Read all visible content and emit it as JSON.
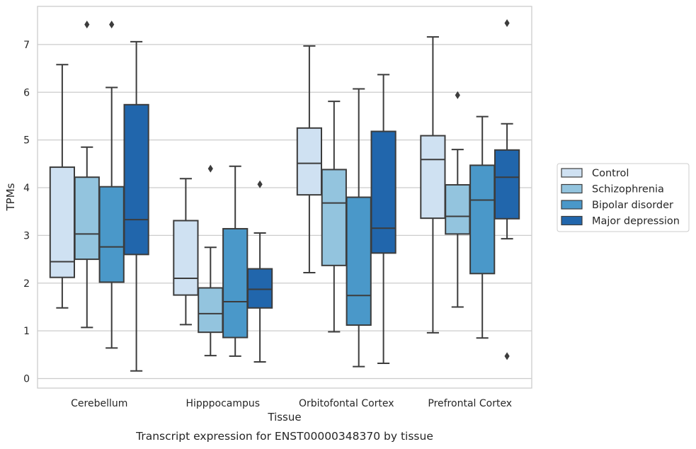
{
  "caption": "Transcript expression for ENST00000348370 by tissue",
  "chart_data": {
    "type": "box",
    "xlabel": "Tissue",
    "ylabel": "TPMs",
    "ylim": [
      -0.2,
      7.8
    ],
    "yticks": [
      0,
      1,
      2,
      3,
      4,
      5,
      6,
      7
    ],
    "grid": "horizontal",
    "legend_position": "right",
    "categories": [
      "Cerebellum",
      "Hipppocampus",
      "Orbitofontal Cortex",
      "Prefrontal Cortex"
    ],
    "series": [
      {
        "name": "Control",
        "color": "#cfe1f2",
        "boxes": [
          {
            "whisker_low": 1.48,
            "q1": 2.12,
            "median": 2.45,
            "q3": 4.43,
            "whisker_high": 6.58,
            "outliers": []
          },
          {
            "whisker_low": 1.13,
            "q1": 1.75,
            "median": 2.1,
            "q3": 3.31,
            "whisker_high": 4.19,
            "outliers": []
          },
          {
            "whisker_low": 2.22,
            "q1": 3.85,
            "median": 4.51,
            "q3": 5.25,
            "whisker_high": 6.97,
            "outliers": []
          },
          {
            "whisker_low": 0.96,
            "q1": 3.36,
            "median": 4.59,
            "q3": 5.09,
            "whisker_high": 7.16,
            "outliers": []
          }
        ]
      },
      {
        "name": "Schizophrenia",
        "color": "#93c4de",
        "boxes": [
          {
            "whisker_low": 1.07,
            "q1": 2.5,
            "median": 3.03,
            "q3": 4.22,
            "whisker_high": 4.85,
            "outliers": [
              7.42
            ]
          },
          {
            "whisker_low": 0.48,
            "q1": 0.97,
            "median": 1.36,
            "q3": 1.9,
            "whisker_high": 2.75,
            "outliers": [
              4.4
            ]
          },
          {
            "whisker_low": 0.98,
            "q1": 2.37,
            "median": 3.68,
            "q3": 4.38,
            "whisker_high": 5.81,
            "outliers": []
          },
          {
            "whisker_low": 1.5,
            "q1": 3.03,
            "median": 3.4,
            "q3": 4.06,
            "whisker_high": 4.8,
            "outliers": [
              5.94
            ]
          }
        ]
      },
      {
        "name": "Bipolar disorder",
        "color": "#4a98c9",
        "boxes": [
          {
            "whisker_low": 0.64,
            "q1": 2.02,
            "median": 2.76,
            "q3": 4.02,
            "whisker_high": 6.1,
            "outliers": [
              7.42
            ]
          },
          {
            "whisker_low": 0.47,
            "q1": 0.86,
            "median": 1.61,
            "q3": 3.14,
            "whisker_high": 4.45,
            "outliers": []
          },
          {
            "whisker_low": 0.25,
            "q1": 1.12,
            "median": 1.74,
            "q3": 3.8,
            "whisker_high": 6.07,
            "outliers": []
          },
          {
            "whisker_low": 0.85,
            "q1": 2.2,
            "median": 3.74,
            "q3": 4.47,
            "whisker_high": 5.49,
            "outliers": []
          }
        ]
      },
      {
        "name": "Major depression",
        "color": "#2166ac",
        "boxes": [
          {
            "whisker_low": 0.16,
            "q1": 2.6,
            "median": 3.33,
            "q3": 5.74,
            "whisker_high": 7.06,
            "outliers": []
          },
          {
            "whisker_low": 0.35,
            "q1": 1.48,
            "median": 1.87,
            "q3": 2.3,
            "whisker_high": 3.05,
            "outliers": [
              4.07
            ]
          },
          {
            "whisker_low": 0.32,
            "q1": 2.63,
            "median": 3.15,
            "q3": 5.18,
            "whisker_high": 6.37,
            "outliers": []
          },
          {
            "whisker_low": 2.93,
            "q1": 3.35,
            "median": 4.22,
            "q3": 4.79,
            "whisker_high": 5.34,
            "outliers": [
              7.45,
              0.47
            ]
          }
        ]
      }
    ]
  }
}
